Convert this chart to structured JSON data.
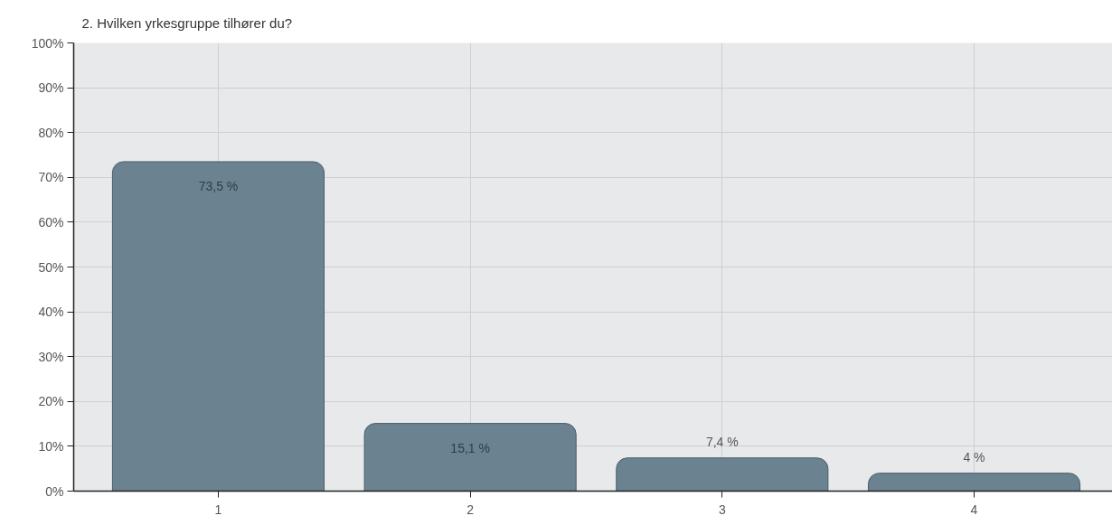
{
  "chart_data": {
    "type": "bar",
    "title": "2. Hvilken yrkesgruppe tilhører du?",
    "categories": [
      "1",
      "2",
      "3",
      "4"
    ],
    "values": [
      73.5,
      15.1,
      7.4,
      4
    ],
    "value_labels": [
      "73,5 %",
      "15,1 %",
      "7,4 %",
      "4 %"
    ],
    "color": "#6b8290",
    "ylim": [
      0,
      100
    ],
    "yticks": [
      {
        "value": 0,
        "label": "0%"
      },
      {
        "value": 10,
        "label": "10%"
      },
      {
        "value": 20,
        "label": "20%"
      },
      {
        "value": 30,
        "label": "30%"
      },
      {
        "value": 40,
        "label": "40%"
      },
      {
        "value": 50,
        "label": "50%"
      },
      {
        "value": 60,
        "label": "60%"
      },
      {
        "value": 70,
        "label": "70%"
      },
      {
        "value": 80,
        "label": "80%"
      },
      {
        "value": 90,
        "label": "90%"
      },
      {
        "value": 100,
        "label": "100%"
      }
    ],
    "grid": true
  }
}
